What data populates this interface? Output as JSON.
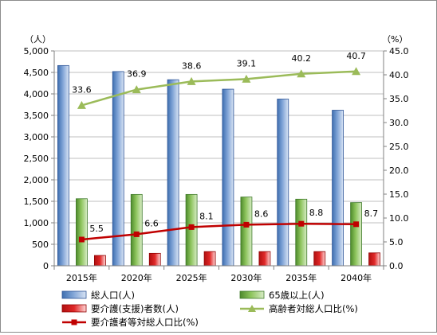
{
  "chart_data": {
    "type": "bar",
    "categories": [
      "2015年",
      "2020年",
      "2025年",
      "2030年",
      "2035年",
      "2040年"
    ],
    "y_left_label": "（人）",
    "y_right_label": "（%）",
    "y_left": {
      "min": 0,
      "max": 5000,
      "step": 500
    },
    "y_right": {
      "min": 0,
      "max": 45,
      "step": 5
    },
    "y_left_ticks": [
      "0",
      "500",
      "1,000",
      "1,500",
      "2,000",
      "2,500",
      "3,000",
      "3,500",
      "4,000",
      "4,500",
      "5,000"
    ],
    "y_right_ticks": [
      "0.0",
      "5.0",
      "10.0",
      "15.0",
      "20.0",
      "25.0",
      "30.0",
      "35.0",
      "40.0",
      "45.0"
    ],
    "grid": true,
    "legend_position": "bottom",
    "series": [
      {
        "name": "総人口(人)",
        "kind": "bar",
        "axis": "left",
        "color": "#4f81bd",
        "values": [
          4660,
          4520,
          4330,
          4110,
          3880,
          3620
        ]
      },
      {
        "name": "65歳以上(人)",
        "kind": "bar",
        "axis": "left",
        "color": "#70ad47",
        "values": [
          1560,
          1660,
          1660,
          1600,
          1550,
          1470
        ]
      },
      {
        "name": "要介護(支援)者数(人)",
        "kind": "bar",
        "axis": "left",
        "color": "#c00000",
        "values": [
          240,
          290,
          330,
          330,
          330,
          300
        ]
      },
      {
        "name": "高齢者対総人口比(%)",
        "kind": "line",
        "axis": "right",
        "color": "#9bbb59",
        "marker": "triangle",
        "values": [
          33.6,
          36.9,
          38.6,
          39.1,
          40.2,
          40.7
        ],
        "labels": [
          "33.6",
          "36.9",
          "38.6",
          "39.1",
          "40.2",
          "40.7"
        ]
      },
      {
        "name": "要介護者等対総人口比(%)",
        "kind": "line",
        "axis": "right",
        "color": "#c00000",
        "marker": "square",
        "values": [
          5.5,
          6.6,
          8.1,
          8.6,
          8.8,
          8.7
        ],
        "labels": [
          "5.5",
          "6.6",
          "8.1",
          "8.6",
          "8.8",
          "8.7"
        ]
      }
    ]
  }
}
